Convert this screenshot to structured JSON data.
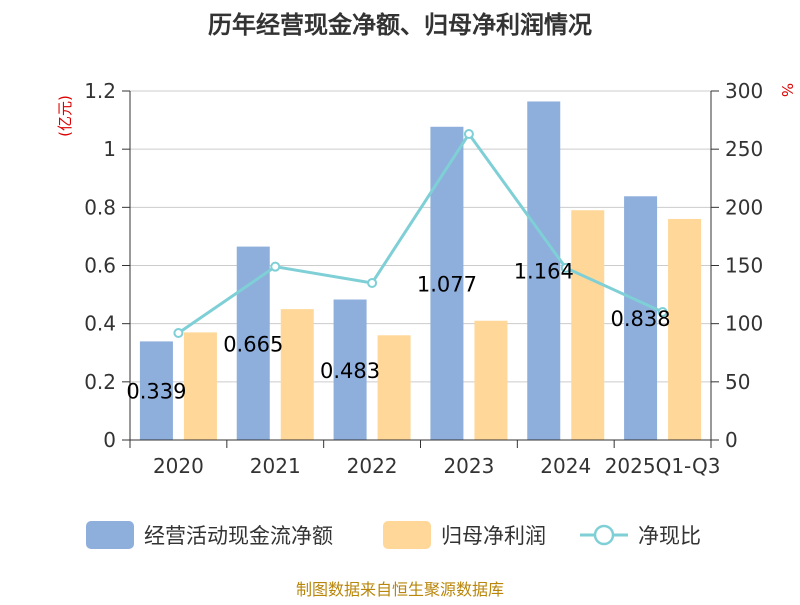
{
  "chart_data": {
    "type": "bar",
    "title": "历年经营现金净额、归母净利润情况",
    "categories": [
      "2020",
      "2021",
      "2022",
      "2023",
      "2024",
      "2025Q1-Q3"
    ],
    "left_axis": {
      "unit": "(亿元)",
      "ylim": [
        0,
        1.2
      ],
      "ticks": [
        "0",
        "0.2",
        "0.4",
        "0.6",
        "0.8",
        "1",
        "1.2"
      ]
    },
    "right_axis": {
      "unit": "%",
      "ylim": [
        0,
        300
      ],
      "ticks": [
        "0",
        "50",
        "100",
        "150",
        "200",
        "250",
        "300"
      ]
    },
    "series": [
      {
        "name": "经营活动现金流净额",
        "type": "bar",
        "axis": "left",
        "color": "#8eaedc",
        "values": [
          0.339,
          0.665,
          0.483,
          1.077,
          1.164,
          0.838
        ],
        "labels": [
          "0.339",
          "0.665",
          "0.483",
          "1.077",
          "1.164",
          "0.838"
        ]
      },
      {
        "name": "归母净利润",
        "type": "bar",
        "axis": "left",
        "color": "#ffd798",
        "values": [
          0.37,
          0.45,
          0.36,
          0.41,
          0.79,
          0.76
        ]
      },
      {
        "name": "净现比",
        "type": "line",
        "axis": "right",
        "color": "#7fcfd6",
        "values": [
          92,
          149,
          135,
          263,
          148,
          110
        ]
      }
    ],
    "grid": true,
    "legend_position": "bottom"
  },
  "source": "制图数据来自恒生聚源数据库"
}
